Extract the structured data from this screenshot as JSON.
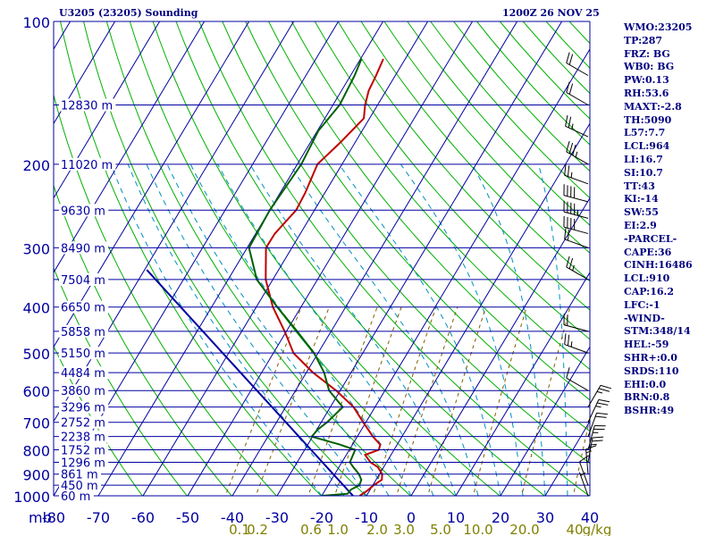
{
  "header": {
    "station": "U3205 (23205) Sounding",
    "time": "1200Z 26 NOV 25"
  },
  "indices": [
    "WMO:23205",
    "TP:287",
    "FRZ: BG",
    "WB0: BG",
    "PW:0.13",
    "RH:53.6",
    "MAXT:-2.8",
    "TH:5090",
    "L57:7.7",
    "LCL:964",
    "LI:16.7",
    "SI:10.7",
    "TT:43",
    "KI:-14",
    "SW:55",
    "EI:2.9",
    "-PARCEL-",
    "CAPE:36",
    "CINH:16486",
    "LCL:910",
    "CAP:16.2",
    "LFC:-1",
    "-WIND-",
    "STM:348/14",
    "HEL:-59",
    "SHR+:0.0",
    "SRDS:110",
    "EHI:0.0",
    "BRN:0.8",
    "BSHR:49"
  ],
  "colors": {
    "isobar": "#0000a0",
    "isotherm": "#0000a0",
    "dry_adiabat": "#00b000",
    "moist_adiabat": "#0090c0",
    "mixing_ratio": "#806000",
    "temperature": "#c00000",
    "dewpoint": "#006000",
    "parcel": "#0000a0",
    "barb": "#000000"
  },
  "chart_data": {
    "type": "skew-t",
    "pressure_axis": {
      "unit_label": "mb",
      "ticks": [
        100,
        200,
        300,
        400,
        500,
        600,
        700,
        800,
        900,
        1000
      ]
    },
    "temperature_axis": {
      "ticks": [
        -80,
        -70,
        -60,
        -50,
        -40,
        -30,
        -20,
        -10,
        0,
        10,
        20,
        30,
        40
      ]
    },
    "mixing_ratio_labels": [
      "0.1",
      "0.2",
      "0.6",
      "1.0",
      "2.0",
      "3.0",
      "5.0",
      "10.0",
      "20.0",
      "40",
      "g/kg"
    ],
    "mixing_ratio_values": [
      0.1,
      0.2,
      0.6,
      1.0,
      2.0,
      3.0,
      5.0,
      10.0,
      20.0,
      40.0
    ],
    "heights": [
      {
        "p": 150,
        "label": "12830 m"
      },
      {
        "p": 200,
        "label": "11020 m"
      },
      {
        "p": 250,
        "label": "9630 m"
      },
      {
        "p": 300,
        "label": "8490 m"
      },
      {
        "p": 350,
        "label": "7504 m"
      },
      {
        "p": 400,
        "label": "6650 m"
      },
      {
        "p": 450,
        "label": "5858 m"
      },
      {
        "p": 500,
        "label": "5150 m"
      },
      {
        "p": 550,
        "label": "4484 m"
      },
      {
        "p": 600,
        "label": "3860 m"
      },
      {
        "p": 650,
        "label": "3296 m"
      },
      {
        "p": 700,
        "label": "2752 m"
      },
      {
        "p": 750,
        "label": "2238 m"
      },
      {
        "p": 800,
        "label": "1752 m"
      },
      {
        "p": 850,
        "label": "1296 m"
      },
      {
        "p": 900,
        "label": "861 m"
      },
      {
        "p": 950,
        "label": "450 m"
      },
      {
        "p": 1000,
        "label": "60 m"
      }
    ],
    "temperature": [
      {
        "p": 1000,
        "t": -11.5
      },
      {
        "p": 975,
        "t": -10.5
      },
      {
        "p": 950,
        "t": -9.8
      },
      {
        "p": 925,
        "t": -8.7
      },
      {
        "p": 900,
        "t": -9.4
      },
      {
        "p": 870,
        "t": -11.3
      },
      {
        "p": 850,
        "t": -13.6
      },
      {
        "p": 820,
        "t": -15.8
      },
      {
        "p": 800,
        "t": -13.4
      },
      {
        "p": 780,
        "t": -13.8
      },
      {
        "p": 750,
        "t": -16.5
      },
      {
        "p": 700,
        "t": -20.6
      },
      {
        "p": 650,
        "t": -24.8
      },
      {
        "p": 600,
        "t": -30.9
      },
      {
        "p": 550,
        "t": -38.5
      },
      {
        "p": 500,
        "t": -45.5
      },
      {
        "p": 450,
        "t": -50.4
      },
      {
        "p": 400,
        "t": -56.3
      },
      {
        "p": 350,
        "t": -61.6
      },
      {
        "p": 300,
        "t": -65.8
      },
      {
        "p": 280,
        "t": -65.7
      },
      {
        "p": 250,
        "t": -64.1
      },
      {
        "p": 230,
        "t": -64.4
      },
      {
        "p": 200,
        "t": -65.5
      },
      {
        "p": 180,
        "t": -63.3
      },
      {
        "p": 160,
        "t": -61.3
      },
      {
        "p": 150,
        "t": -62.8
      },
      {
        "p": 140,
        "t": -63.9
      },
      {
        "p": 130,
        "t": -64.3
      },
      {
        "p": 120,
        "t": -64.9
      }
    ],
    "dewpoint": [
      {
        "p": 1000,
        "t": -20.0
      },
      {
        "p": 990,
        "t": -14.5
      },
      {
        "p": 970,
        "t": -14.3
      },
      {
        "p": 950,
        "t": -13.0
      },
      {
        "p": 925,
        "t": -13.3
      },
      {
        "p": 900,
        "t": -14.6
      },
      {
        "p": 870,
        "t": -16.8
      },
      {
        "p": 850,
        "t": -18.2
      },
      {
        "p": 800,
        "t": -18.7
      },
      {
        "p": 780,
        "t": -22.8
      },
      {
        "p": 750,
        "t": -30.2
      },
      {
        "p": 725,
        "t": -29.8
      },
      {
        "p": 700,
        "t": -28.7
      },
      {
        "p": 650,
        "t": -27.2
      },
      {
        "p": 600,
        "t": -32.5
      },
      {
        "p": 550,
        "t": -36.0
      },
      {
        "p": 500,
        "t": -40.9
      },
      {
        "p": 450,
        "t": -47.6
      },
      {
        "p": 400,
        "t": -55.3
      },
      {
        "p": 350,
        "t": -63.6
      },
      {
        "p": 300,
        "t": -69.6
      },
      {
        "p": 250,
        "t": -70.0
      },
      {
        "p": 200,
        "t": -69.1
      },
      {
        "p": 170,
        "t": -69.8
      },
      {
        "p": 150,
        "t": -68.5
      },
      {
        "p": 130,
        "t": -69.1
      },
      {
        "p": 120,
        "t": -69.8
      }
    ],
    "parcel": [
      {
        "p": 1000,
        "t": -13.0
      },
      {
        "p": 334,
        "t": -89.5
      }
    ],
    "wind_barbs": [
      {
        "p": 1000,
        "dir": 340,
        "spd": 5
      },
      {
        "p": 950,
        "dir": 340,
        "spd": 10
      },
      {
        "p": 900,
        "dir": 355,
        "spd": 15
      },
      {
        "p": 850,
        "dir": 10,
        "spd": 25
      },
      {
        "p": 800,
        "dir": 15,
        "spd": 25
      },
      {
        "p": 750,
        "dir": 20,
        "spd": 20
      },
      {
        "p": 700,
        "dir": 25,
        "spd": 25
      },
      {
        "p": 650,
        "dir": 30,
        "spd": 25
      },
      {
        "p": 600,
        "dir": 300,
        "spd": 10
      },
      {
        "p": 500,
        "dir": 290,
        "spd": 25
      },
      {
        "p": 450,
        "dir": 285,
        "spd": 20
      },
      {
        "p": 350,
        "dir": 300,
        "spd": 25
      },
      {
        "p": 300,
        "dir": 290,
        "spd": 20
      },
      {
        "p": 280,
        "dir": 285,
        "spd": 40
      },
      {
        "p": 260,
        "dir": 285,
        "spd": 45
      },
      {
        "p": 240,
        "dir": 285,
        "spd": 40
      },
      {
        "p": 220,
        "dir": 290,
        "spd": 25
      },
      {
        "p": 200,
        "dir": 300,
        "spd": 35
      },
      {
        "p": 175,
        "dir": 295,
        "spd": 25
      },
      {
        "p": 150,
        "dir": 300,
        "spd": 20
      },
      {
        "p": 130,
        "dir": 300,
        "spd": 20
      }
    ],
    "xlim": [
      -80,
      40
    ],
    "ylim": [
      1000,
      100
    ],
    "y_scale": "log-pressure"
  }
}
